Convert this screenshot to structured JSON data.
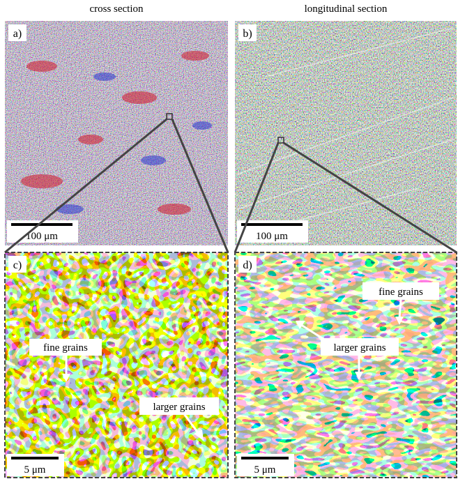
{
  "headers": [
    "cross section",
    "longitudinal section"
  ],
  "panels": [
    {
      "label": "a)",
      "scale_bar": "100 μm"
    },
    {
      "label": "b)",
      "scale_bar": "100 μm"
    },
    {
      "label": "c)",
      "scale_bar": "5 μm",
      "annotations": [
        "fine grains",
        "larger grains"
      ]
    },
    {
      "label": "d)",
      "scale_bar": "5 μm",
      "annotations": [
        "fine grains",
        "larger grains"
      ]
    }
  ]
}
